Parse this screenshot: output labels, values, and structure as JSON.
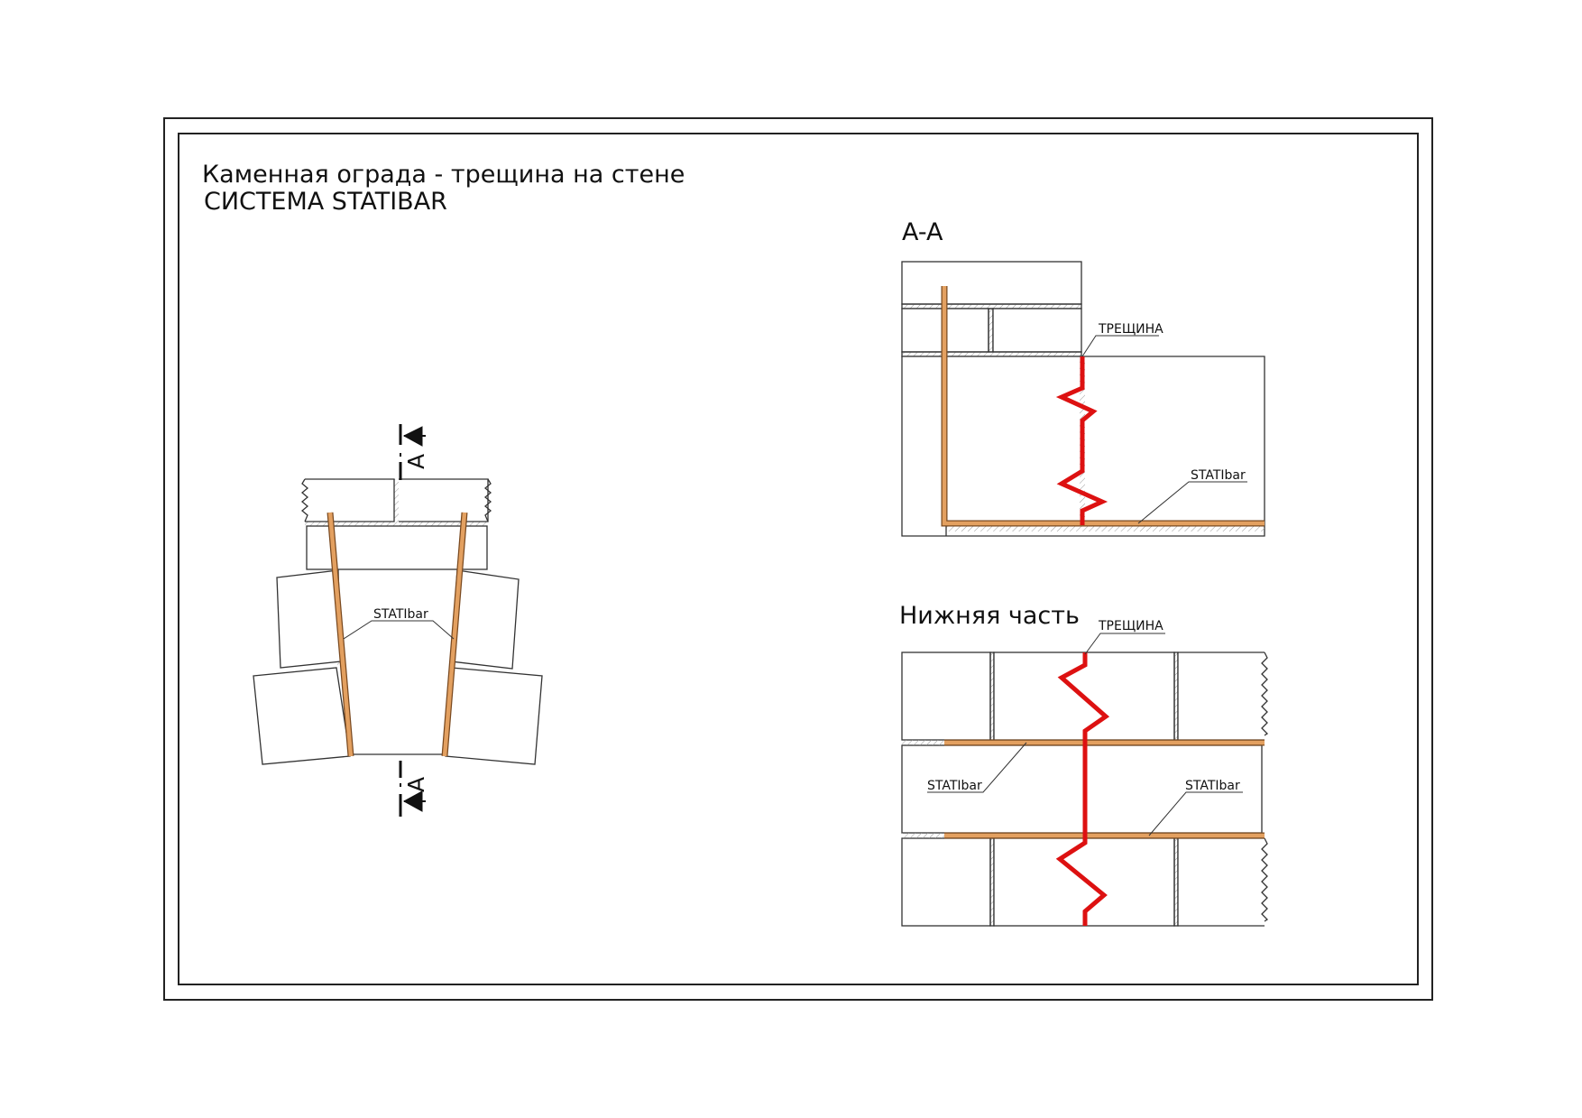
{
  "title": {
    "main": "Каменная ограда - трещина на стене",
    "sub": "СИСТЕМА STATIBAR"
  },
  "plan_view": {
    "section_mark_top": "A",
    "section_mark_bottom": "A",
    "bar_label": "STATIbar"
  },
  "section_aa": {
    "title": "A-A",
    "crack_label": "ТРЕЩИНА",
    "bar_label": "STATIbar"
  },
  "bottom_view": {
    "title": "Нижняя часть",
    "crack_label": "ТРЕЩИНА",
    "bar_label_left": "STATIbar",
    "bar_label_right": "STATIbar"
  },
  "colors": {
    "crack": "#dd1111",
    "bar": "#e3a060",
    "line": "#333333"
  }
}
